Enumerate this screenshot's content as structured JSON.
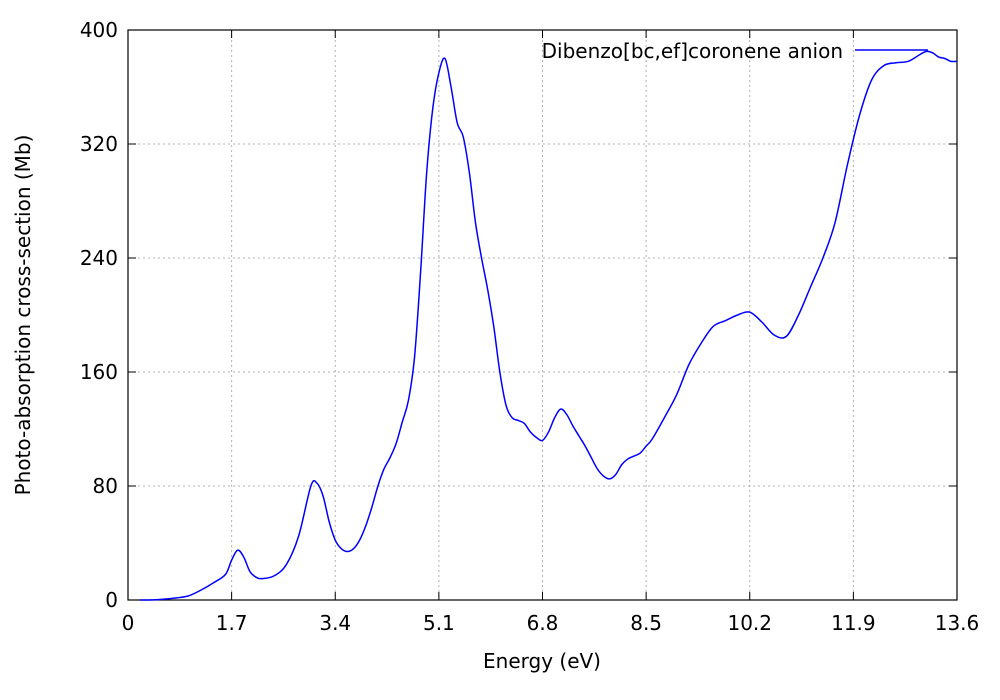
{
  "chart_data": {
    "type": "line",
    "title": "",
    "xlabel": "Energy (eV)",
    "ylabel": "Photo-absorption cross-section (Mb)",
    "xlim": [
      0,
      13.6
    ],
    "ylim": [
      0,
      400
    ],
    "xticks": [
      0,
      1.7,
      3.4,
      5.1,
      6.8,
      8.5,
      10.2,
      11.9,
      13.6
    ],
    "xtick_labels": [
      "0",
      "1.7",
      "3.4",
      "5.1",
      "6.8",
      "8.5",
      "10.2",
      "11.9",
      "13.6"
    ],
    "yticks": [
      0,
      80,
      160,
      240,
      320,
      400
    ],
    "ytick_labels": [
      "0",
      "80",
      "160",
      "240",
      "320",
      "400"
    ],
    "grid": true,
    "legend_position": "top-right",
    "colors": {
      "series": "#0000ff",
      "grid": "#b0b0b0",
      "axis": "#000000"
    },
    "series": [
      {
        "name": "Dibenzo[bc,ef]coronene anion",
        "x": [
          0.2,
          0.5,
          0.8,
          1.0,
          1.2,
          1.4,
          1.6,
          1.7,
          1.8,
          1.9,
          2.0,
          2.1,
          2.2,
          2.4,
          2.6,
          2.8,
          3.0,
          3.1,
          3.2,
          3.3,
          3.4,
          3.5,
          3.6,
          3.7,
          3.8,
          3.9,
          4.0,
          4.1,
          4.2,
          4.3,
          4.4,
          4.5,
          4.6,
          4.7,
          4.8,
          4.9,
          5.0,
          5.1,
          5.2,
          5.3,
          5.4,
          5.5,
          5.6,
          5.7,
          5.8,
          5.9,
          6.0,
          6.1,
          6.2,
          6.3,
          6.4,
          6.5,
          6.6,
          6.7,
          6.8,
          6.9,
          7.0,
          7.1,
          7.2,
          7.3,
          7.4,
          7.5,
          7.6,
          7.7,
          7.8,
          7.9,
          8.0,
          8.1,
          8.2,
          8.3,
          8.4,
          8.5,
          8.6,
          8.8,
          9.0,
          9.2,
          9.4,
          9.6,
          9.8,
          10.0,
          10.2,
          10.4,
          10.6,
          10.8,
          11.0,
          11.2,
          11.4,
          11.6,
          11.8,
          12.0,
          12.2,
          12.4,
          12.6,
          12.8,
          13.0,
          13.1,
          13.2,
          13.3,
          13.4,
          13.5,
          13.6
        ],
        "y": [
          0,
          0.3,
          1.5,
          3,
          7,
          12,
          18,
          28,
          35,
          30,
          20,
          16,
          15,
          17,
          25,
          45,
          80,
          82,
          73,
          55,
          42,
          36,
          34,
          36,
          42,
          52,
          65,
          80,
          92,
          100,
          110,
          125,
          140,
          170,
          230,
          300,
          345,
          370,
          380,
          360,
          335,
          325,
          300,
          265,
          240,
          218,
          192,
          160,
          137,
          128,
          126,
          124,
          118,
          114,
          112,
          118,
          128,
          134,
          130,
          122,
          115,
          108,
          100,
          92,
          87,
          85,
          88,
          95,
          99,
          101,
          103,
          108,
          113,
          128,
          144,
          165,
          180,
          192,
          196,
          200,
          202,
          195,
          186,
          185,
          200,
          220,
          240,
          265,
          305,
          340,
          365,
          375,
          377,
          378,
          383,
          385,
          384,
          381,
          380,
          378,
          378
        ]
      }
    ]
  }
}
